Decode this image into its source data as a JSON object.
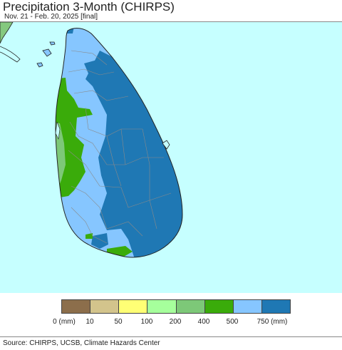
{
  "title": "Precipitation 3-Month (CHIRPS)",
  "subtitle": "Nov. 21 - Feb. 20, 2025 [final]",
  "source": "Source: CHIRPS, UCSB, Climate Hazards Center",
  "colors": {
    "sea": "#c6ffff",
    "india": "#85c97f",
    "border": "#8a8a8a",
    "coast": "#222222"
  },
  "legend": {
    "colors": [
      "#8c6e4b",
      "#d3c48c",
      "#ffff75",
      "#a6ff9c",
      "#7dc878",
      "#3aab0a",
      "#86c6ff",
      "#1f78b4"
    ],
    "labels": [
      "0 (mm)",
      "10",
      "50",
      "100",
      "200",
      "400",
      "500",
      "750 (mm)"
    ]
  }
}
